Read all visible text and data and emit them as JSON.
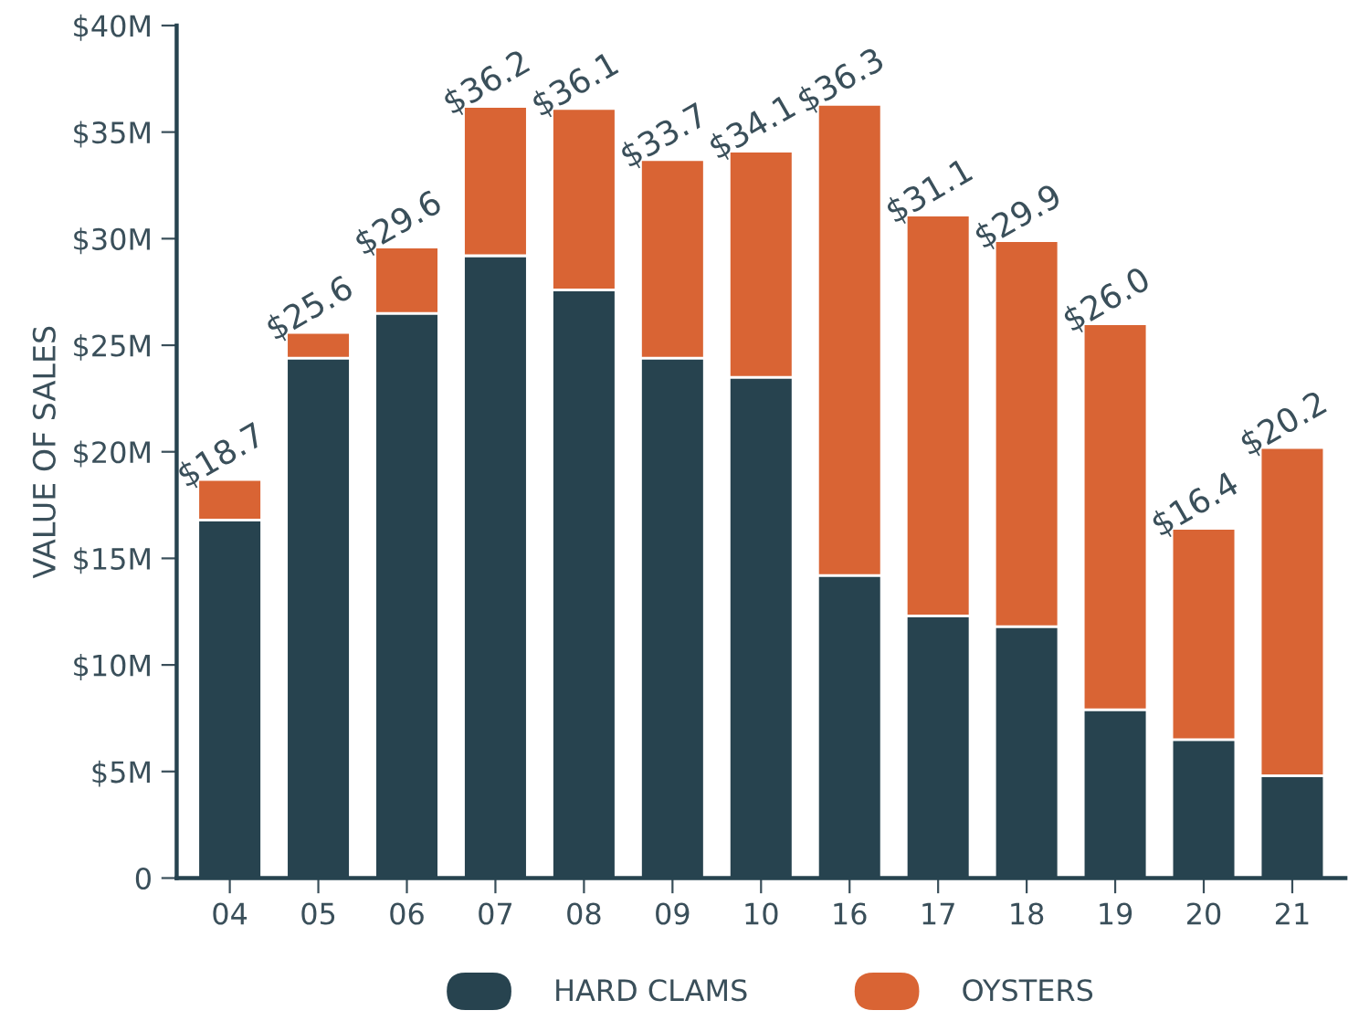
{
  "chart_data": {
    "type": "bar",
    "stacked": true,
    "ylabel": "VALUE OF SALES",
    "categories": [
      "04",
      "05",
      "06",
      "07",
      "08",
      "09",
      "10",
      "16",
      "17",
      "18",
      "19",
      "20",
      "21"
    ],
    "series": [
      {
        "name": "HARD CLAMS",
        "color": "#27434f",
        "values": [
          16.8,
          24.4,
          26.5,
          29.2,
          27.6,
          24.4,
          23.5,
          14.2,
          12.3,
          11.8,
          7.9,
          6.5,
          4.8
        ]
      },
      {
        "name": "OYSTERS",
        "color": "#d96434",
        "values": [
          1.9,
          1.2,
          3.1,
          7.0,
          8.5,
          9.3,
          10.6,
          22.1,
          18.8,
          18.1,
          18.1,
          9.9,
          15.4
        ]
      }
    ],
    "totals": [
      "$18.7",
      "$25.6",
      "$29.6",
      "$36.2",
      "$36.1",
      "$33.7",
      "$34.1",
      "$36.3",
      "$31.1",
      "$29.9",
      "$26.0",
      "$16.4",
      "$20.2"
    ],
    "ylim": [
      0,
      40
    ],
    "yticks": [
      {
        "value": 0,
        "label": "0"
      },
      {
        "value": 5,
        "label": "$5M"
      },
      {
        "value": 10,
        "label": "$10M"
      },
      {
        "value": 15,
        "label": "$15M"
      },
      {
        "value": 20,
        "label": "$20M"
      },
      {
        "value": 25,
        "label": "$25M"
      },
      {
        "value": 30,
        "label": "$30M"
      },
      {
        "value": 35,
        "label": "$35M"
      },
      {
        "value": 40,
        "label": "$40M"
      }
    ],
    "grid": false,
    "legend": "bottom"
  }
}
